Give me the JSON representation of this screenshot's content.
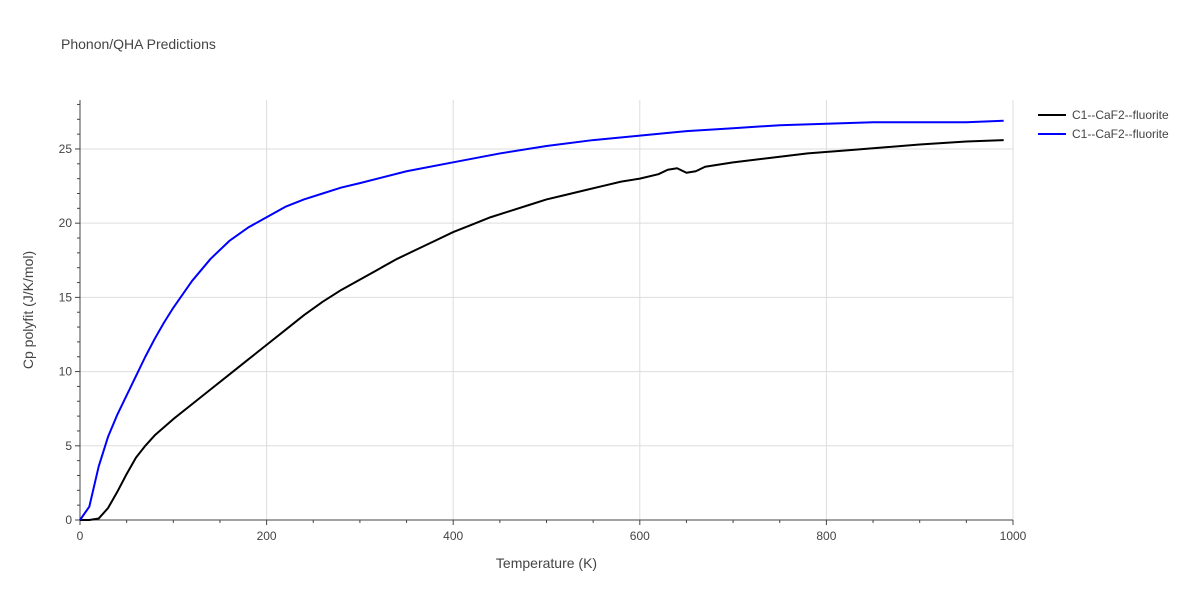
{
  "chart_data": {
    "type": "line",
    "title": "Phonon/QHA Predictions",
    "xlabel": "Temperature (K)",
    "ylabel": "Cp polyfit (J/K/mol)",
    "xlim": [
      0,
      1000
    ],
    "ylim": [
      0,
      28.3
    ],
    "xticks": [
      0,
      200,
      400,
      600,
      800,
      1000
    ],
    "yticks": [
      0,
      5,
      10,
      15,
      20,
      25
    ],
    "grid": true,
    "legend_position": "top-right",
    "series": [
      {
        "name": "C1--CaF2--fluorite",
        "color": "#000000",
        "x": [
          0,
          10,
          20,
          30,
          40,
          50,
          60,
          70,
          80,
          100,
          120,
          140,
          160,
          180,
          200,
          220,
          240,
          260,
          280,
          300,
          320,
          340,
          360,
          380,
          400,
          420,
          440,
          460,
          480,
          500,
          520,
          540,
          560,
          580,
          600,
          620,
          630,
          640,
          650,
          660,
          670,
          700,
          740,
          780,
          820,
          860,
          900,
          950,
          990
        ],
        "y": [
          0,
          0,
          0.1,
          0.8,
          1.9,
          3.1,
          4.2,
          5.0,
          5.7,
          6.8,
          7.8,
          8.8,
          9.8,
          10.8,
          11.8,
          12.8,
          13.8,
          14.7,
          15.5,
          16.2,
          16.9,
          17.6,
          18.2,
          18.8,
          19.4,
          19.9,
          20.4,
          20.8,
          21.2,
          21.6,
          21.9,
          22.2,
          22.5,
          22.8,
          23.0,
          23.3,
          23.6,
          23.7,
          23.4,
          23.5,
          23.8,
          24.1,
          24.4,
          24.7,
          24.9,
          25.1,
          25.3,
          25.5,
          25.6
        ]
      },
      {
        "name": "C1--CaF2--fluorite",
        "color": "#0000ff",
        "x": [
          0,
          10,
          20,
          30,
          40,
          50,
          60,
          70,
          80,
          90,
          100,
          120,
          140,
          160,
          180,
          200,
          220,
          240,
          260,
          280,
          300,
          350,
          400,
          450,
          500,
          550,
          600,
          650,
          700,
          750,
          800,
          850,
          900,
          950,
          990
        ],
        "y": [
          0,
          0.9,
          3.6,
          5.6,
          7.1,
          8.4,
          9.7,
          11.0,
          12.2,
          13.3,
          14.3,
          16.1,
          17.6,
          18.8,
          19.7,
          20.4,
          21.1,
          21.6,
          22.0,
          22.4,
          22.7,
          23.5,
          24.1,
          24.7,
          25.2,
          25.6,
          25.9,
          26.2,
          26.4,
          26.6,
          26.7,
          26.8,
          26.8,
          26.8,
          26.9
        ]
      }
    ]
  }
}
